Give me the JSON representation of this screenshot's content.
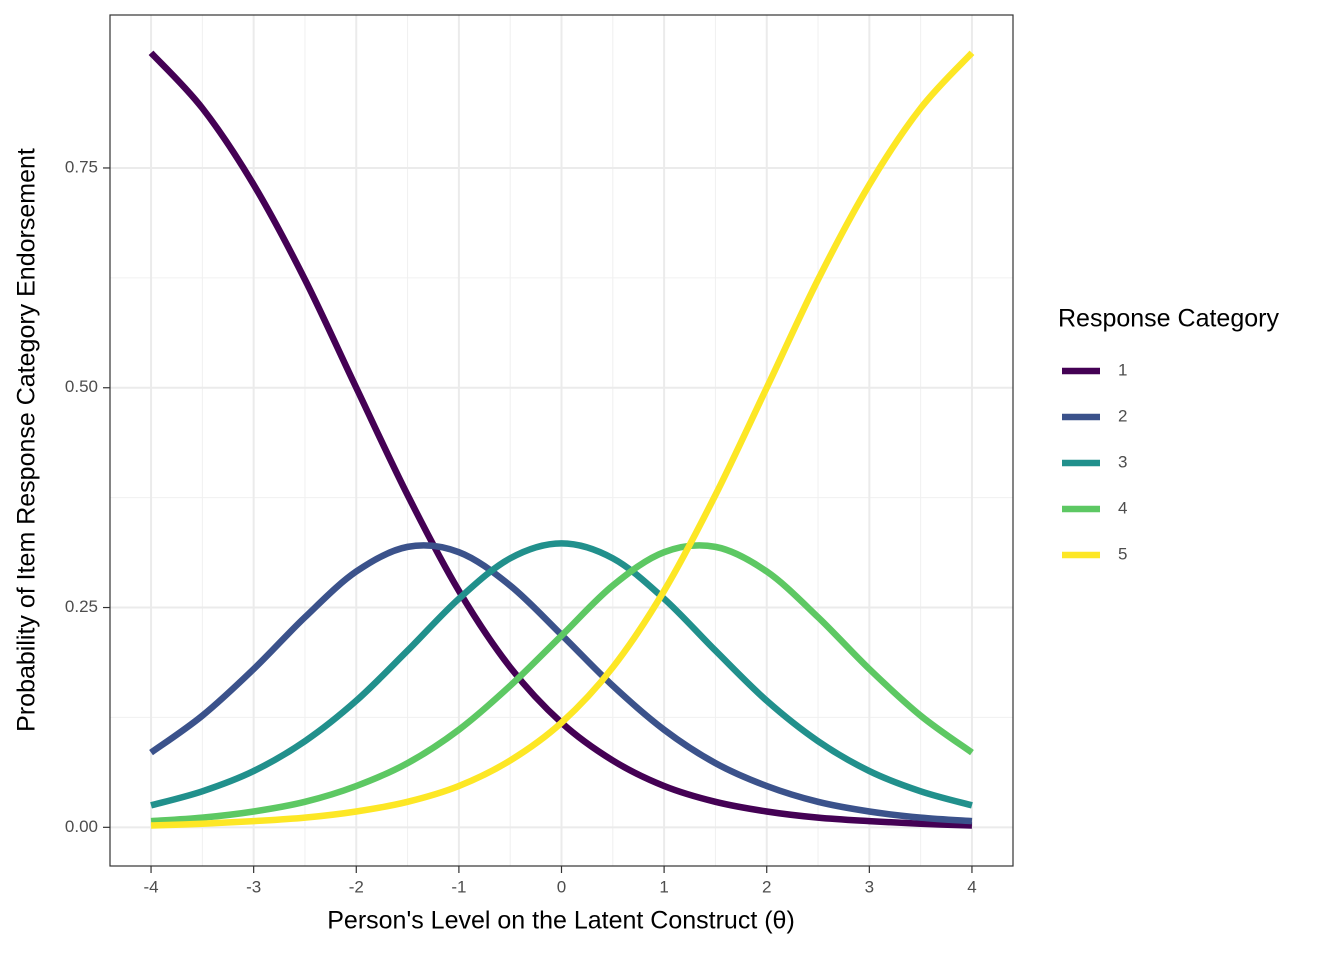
{
  "chart_data": {
    "type": "line",
    "x_label": "Person's Level on the Latent Construct (θ)",
    "y_label": "Probability of Item Response Category Endorsement",
    "legend_title": "Response Category",
    "legend_position": "right",
    "grid": true,
    "minor_grid": true,
    "x": [
      -4,
      -3.5,
      -3,
      -2.5,
      -2,
      -1.5,
      -1,
      -0.5,
      0,
      0.5,
      1,
      1.5,
      2,
      2.5,
      3,
      3.5,
      4
    ],
    "series": [
      {
        "name": "1",
        "color": "#440154",
        "values": [
          0.881,
          0.818,
          0.731,
          0.623,
          0.5,
          0.378,
          0.269,
          0.182,
          0.119,
          0.076,
          0.047,
          0.029,
          0.018,
          0.011,
          0.007,
          0.004,
          0.002
        ]
      },
      {
        "name": "2",
        "color": "#3b528b",
        "values": [
          0.085,
          0.127,
          0.18,
          0.239,
          0.291,
          0.319,
          0.313,
          0.275,
          0.219,
          0.161,
          0.111,
          0.073,
          0.047,
          0.029,
          0.018,
          0.011,
          0.007
        ]
      },
      {
        "name": "3",
        "color": "#21908c",
        "values": [
          0.025,
          0.041,
          0.064,
          0.098,
          0.144,
          0.201,
          0.26,
          0.306,
          0.323,
          0.306,
          0.26,
          0.201,
          0.144,
          0.098,
          0.064,
          0.041,
          0.025
        ]
      },
      {
        "name": "4",
        "color": "#5dc863",
        "values": [
          0.007,
          0.011,
          0.018,
          0.029,
          0.047,
          0.073,
          0.111,
          0.161,
          0.218,
          0.275,
          0.313,
          0.319,
          0.291,
          0.239,
          0.18,
          0.127,
          0.085
        ]
      },
      {
        "name": "5",
        "color": "#fde725",
        "values": [
          0.002,
          0.004,
          0.007,
          0.011,
          0.018,
          0.029,
          0.047,
          0.076,
          0.119,
          0.182,
          0.269,
          0.378,
          0.5,
          0.623,
          0.731,
          0.818,
          0.881
        ]
      }
    ],
    "xlim": [
      -4.4,
      4.4
    ],
    "xticks": [
      -4,
      -3,
      -2,
      -1,
      0,
      1,
      2,
      3,
      4
    ],
    "ylim": [
      -0.044,
      0.924
    ],
    "yticks": [
      {
        "value": 0,
        "label": "0.00"
      },
      {
        "value": 0.25,
        "label": "0.25"
      },
      {
        "value": 0.5,
        "label": "0.50"
      },
      {
        "value": 0.75,
        "label": "0.75"
      }
    ]
  }
}
